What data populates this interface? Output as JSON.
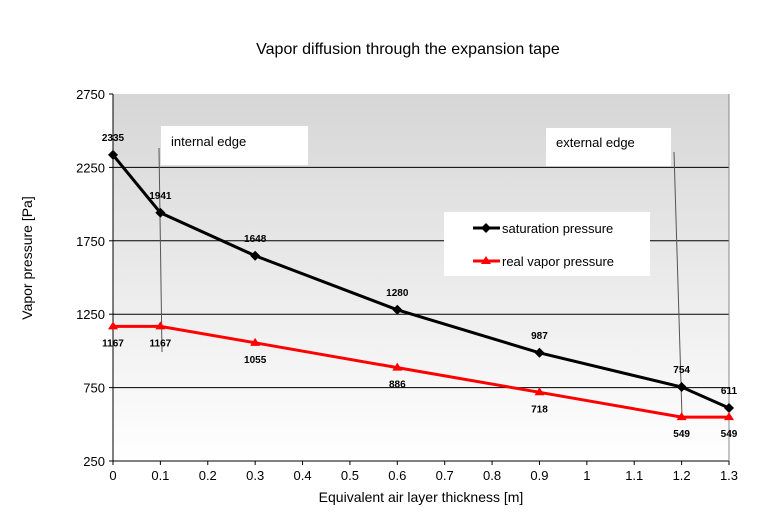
{
  "chart_data": {
    "type": "line",
    "title": "Vapor diffusion through the expansion tape",
    "xlabel": "Equivalent air layer thickness [m]",
    "ylabel": "Vapor pressure   [Pa]",
    "xlim": [
      0,
      1.3
    ],
    "ylim": [
      250,
      2750
    ],
    "x_ticks": [
      "0",
      "0.1",
      "0.2",
      "0.3",
      "0.4",
      "0.5",
      "0.6",
      "0.7",
      "0.8",
      "0.9",
      "1",
      "1.1",
      "1.2",
      "1.3"
    ],
    "y_ticks": [
      "250",
      "750",
      "1250",
      "1750",
      "2250",
      "2750"
    ],
    "grid": "horizontal",
    "legend_position": "center-right",
    "series": [
      {
        "name": "saturation pressure",
        "color": "#000000",
        "marker": "diamond",
        "x": [
          0,
          0.1,
          0.3,
          0.6,
          0.9,
          1.2,
          1.3
        ],
        "values": [
          2335,
          1941,
          1648,
          1280,
          987,
          754,
          611
        ]
      },
      {
        "name": "real vapor pressure",
        "color": "#ff0000",
        "marker": "triangle",
        "x": [
          0,
          0.1,
          0.3,
          0.6,
          0.9,
          1.2,
          1.3
        ],
        "values": [
          1167,
          1167,
          1055,
          886,
          718,
          549,
          549
        ]
      }
    ],
    "annotations": [
      {
        "text": "internal edge",
        "x": 0.1
      },
      {
        "text": "external edge",
        "x": 1.2
      }
    ]
  }
}
